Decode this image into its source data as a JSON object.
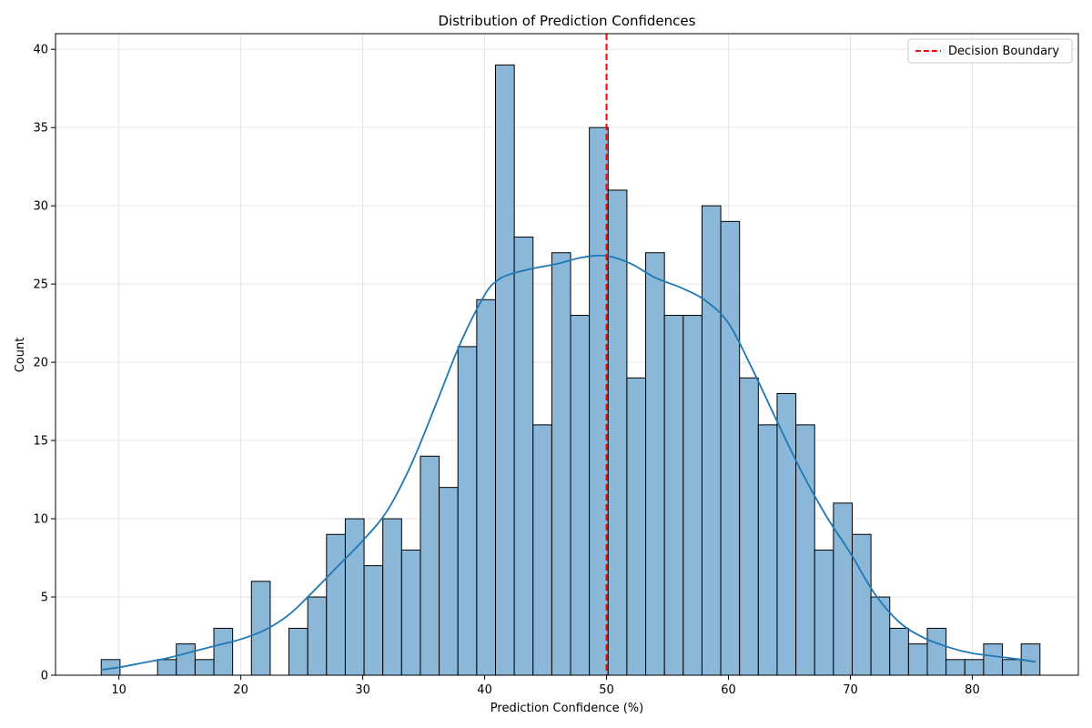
{
  "chart_data": {
    "type": "bar",
    "title": "Distribution of Prediction Confidences",
    "xlabel": "Prediction Confidence (%)",
    "ylabel": "Count",
    "xlim": [
      4.8,
      88.7
    ],
    "ylim": [
      0,
      41
    ],
    "xticks": [
      10,
      20,
      30,
      40,
      50,
      60,
      70,
      80
    ],
    "yticks": [
      0,
      5,
      10,
      15,
      20,
      25,
      30,
      35,
      40
    ],
    "grid": true,
    "legend_position": "top-right",
    "histogram": {
      "bin_start": 8.55,
      "bin_width": 1.54,
      "counts": [
        1,
        0,
        0,
        1,
        2,
        1,
        3,
        0,
        6,
        0,
        3,
        5,
        9,
        10,
        7,
        10,
        8,
        14,
        12,
        21,
        24,
        39,
        28,
        16,
        27,
        23,
        35,
        31,
        19,
        27,
        23,
        23,
        30,
        29,
        19,
        16,
        18,
        16,
        8,
        11,
        9,
        5,
        3,
        2,
        3,
        1,
        1,
        2,
        1,
        2
      ],
      "fill_color": "#8BB8D9",
      "edge_color": "#000000"
    },
    "kde": {
      "color": "#1f77b4",
      "x": [
        8.5,
        10,
        12,
        14,
        16,
        18,
        20,
        22,
        24,
        26,
        28,
        30,
        32,
        34,
        36,
        38,
        40,
        41,
        42,
        44,
        46,
        48,
        50,
        52,
        54,
        56,
        58,
        60,
        62,
        64,
        66,
        68,
        70,
        72,
        74,
        76,
        78,
        80,
        82,
        84,
        85.2
      ],
      "y": [
        0.35,
        0.5,
        0.8,
        1.1,
        1.5,
        1.9,
        2.3,
        2.9,
        3.9,
        5.4,
        7.0,
        8.6,
        10.5,
        13.5,
        17.3,
        21.2,
        24.3,
        25.2,
        25.6,
        26.0,
        26.3,
        26.7,
        26.8,
        26.3,
        25.4,
        24.8,
        24.0,
        22.5,
        19.5,
        16.2,
        13.0,
        10.2,
        7.8,
        5.2,
        3.4,
        2.4,
        1.8,
        1.4,
        1.2,
        1.0,
        0.85
      ]
    },
    "decision_boundary": {
      "x": 50,
      "color": "#ff0000",
      "label": "Decision Boundary"
    }
  }
}
